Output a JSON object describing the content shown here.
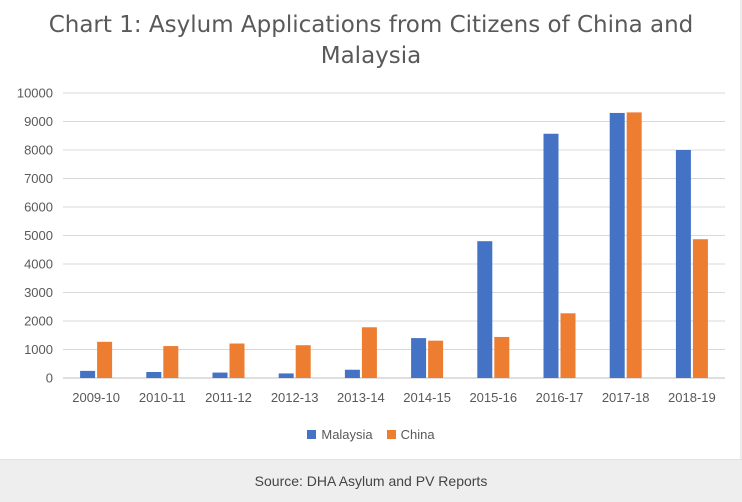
{
  "chart_data": {
    "type": "bar",
    "title": "Chart 1: Asylum Applications from Citizens of China and\nMalaysia",
    "categories": [
      "2009-10",
      "2010-11",
      "2011-12",
      "2012-13",
      "2013-14",
      "2014-15",
      "2015-16",
      "2016-17",
      "2017-18",
      "2018-19"
    ],
    "series": [
      {
        "name": "Malaysia",
        "color": "#4472c4",
        "values": [
          250,
          210,
          190,
          160,
          290,
          1400,
          4800,
          8570,
          9300,
          8000
        ]
      },
      {
        "name": "China",
        "color": "#ed7d31",
        "values": [
          1270,
          1120,
          1210,
          1150,
          1780,
          1310,
          1440,
          2270,
          9320,
          4870
        ]
      }
    ],
    "ylim": [
      0,
      10000
    ],
    "yticks": [
      0,
      1000,
      2000,
      3000,
      4000,
      5000,
      6000,
      7000,
      8000,
      9000,
      10000
    ],
    "grid": true,
    "legend_position": "bottom"
  },
  "caption": "Source: DHA Asylum and PV Reports"
}
